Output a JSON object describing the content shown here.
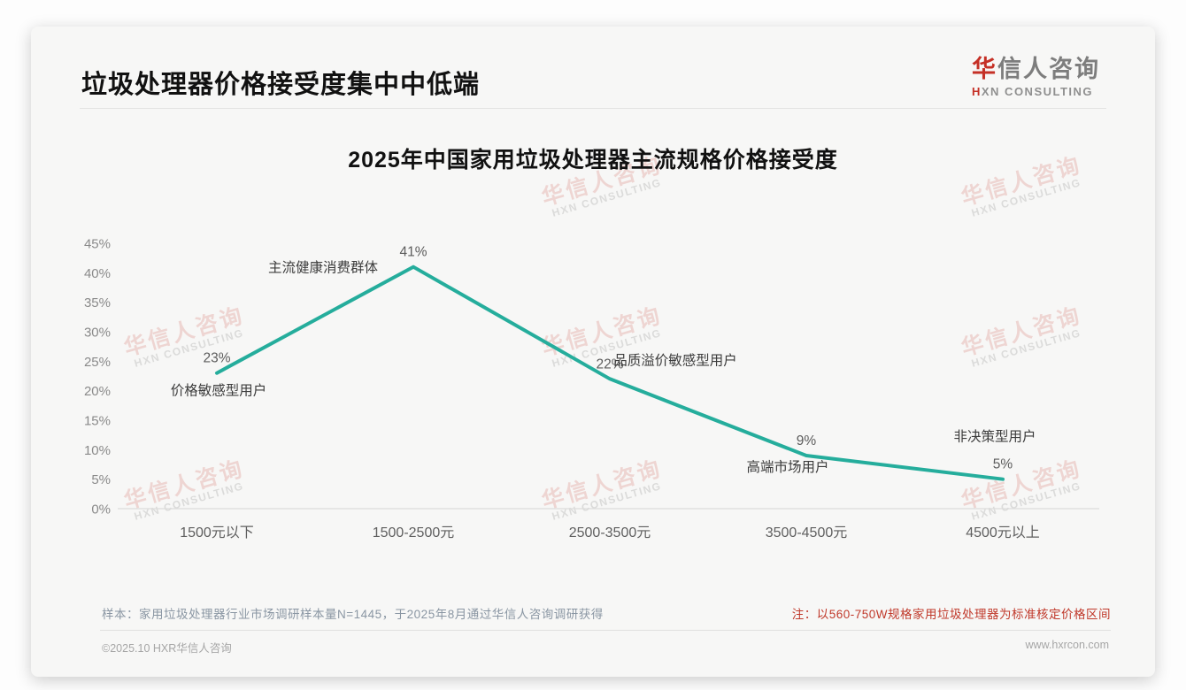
{
  "header": {
    "title": "垃圾处理器价格接受度集中中低端",
    "logo_zh_accent": "华",
    "logo_zh_rest": "信人咨询",
    "logo_en": "HXN CONSULTING"
  },
  "chart_data": {
    "type": "line",
    "title": "2025年中国家用垃圾处理器主流规格价格接受度",
    "categories": [
      "1500元以下",
      "1500-2500元",
      "2500-3500元",
      "3500-4500元",
      "4500元以上"
    ],
    "values": [
      23,
      41,
      22,
      9,
      5
    ],
    "value_labels": [
      "23%",
      "41%",
      "22%",
      "9%",
      "5%"
    ],
    "annotations": [
      "价格敏感型用户",
      "主流健康消费群体",
      "品质溢价敏感型用户",
      "高端市场用户",
      "非决策型用户"
    ],
    "xlabel": "",
    "ylabel": "",
    "ylim": [
      0,
      45
    ],
    "ytick_step": 5,
    "ytick_labels": [
      "0%",
      "5%",
      "10%",
      "15%",
      "20%",
      "25%",
      "30%",
      "35%",
      "40%",
      "45%"
    ],
    "grid": false,
    "legend": null,
    "line_color": "#25ad9c"
  },
  "notes": {
    "sample": "样本：家用垃圾处理器行业市场调研样本量N=1445，于2025年8月通过华信人咨询调研获得",
    "standard": "注：以560-750W规格家用垃圾处理器为标准核定价格区间"
  },
  "footer": {
    "left": "©2025.10 HXR华信人咨询",
    "right": "www.hxrcon.com"
  },
  "watermark": {
    "zh": "华信人咨询",
    "en": "HXN CONSULTING"
  },
  "colors": {
    "line_teal": "#25ad9c",
    "brand_red": "#c53026",
    "note_red": "#c0392b",
    "axis_gray": "#8a8a8a"
  }
}
